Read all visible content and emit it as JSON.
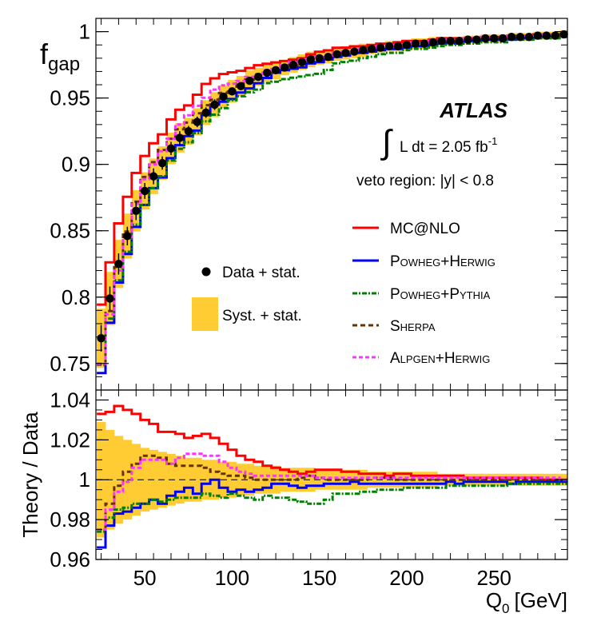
{
  "chart_data": [
    {
      "type": "line",
      "panel": "top",
      "ylabel": "f",
      "ylabel_sub": "gap",
      "ylim": [
        0.73,
        1.01
      ],
      "xlim": [
        22,
        292
      ],
      "yticks": [
        {
          "v": 0.75,
          "label": "0.75"
        },
        {
          "v": 0.8,
          "label": "0.8"
        },
        {
          "v": 0.85,
          "label": "0.85"
        },
        {
          "v": 0.9,
          "label": "0.9"
        },
        {
          "v": 0.95,
          "label": "0.95"
        },
        {
          "v": 1.0,
          "label": "1"
        }
      ],
      "annotations": {
        "experiment": "ATLAS",
        "lumi_prefix": "L dt = 2.05 fb",
        "lumi_exp": "-1",
        "integral": "∫",
        "veto": "veto region: |y| < 0.8"
      },
      "legend": {
        "data": "Data + stat.",
        "syst": "Syst. + stat.",
        "mcnlo": "MC@NLO",
        "powheg_herwig": "Powheg+Herwig",
        "powheg_pythia": "Powheg+Pythia",
        "sherpa": "Sherpa",
        "alpgen": "Alpgen+Herwig"
      },
      "data": {
        "x": [
          25,
          30,
          35,
          40,
          45,
          50,
          55,
          60,
          65,
          70,
          75,
          80,
          85,
          90,
          95,
          100,
          105,
          110,
          115,
          120,
          125,
          130,
          135,
          140,
          145,
          150,
          155,
          160,
          165,
          170,
          175,
          180,
          185,
          190,
          195,
          200,
          205,
          210,
          215,
          220,
          225,
          230,
          235,
          240,
          245,
          250,
          255,
          260,
          265,
          270,
          275,
          280,
          285,
          290
        ],
        "y": [
          0.769,
          0.799,
          0.825,
          0.846,
          0.865,
          0.88,
          0.891,
          0.901,
          0.912,
          0.92,
          0.925,
          0.932,
          0.939,
          0.945,
          0.951,
          0.955,
          0.959,
          0.963,
          0.966,
          0.969,
          0.971,
          0.973,
          0.975,
          0.977,
          0.979,
          0.98,
          0.981,
          0.983,
          0.984,
          0.985,
          0.986,
          0.987,
          0.988,
          0.989,
          0.989,
          0.99,
          0.991,
          0.991,
          0.992,
          0.993,
          0.993,
          0.993,
          0.994,
          0.994,
          0.995,
          0.995,
          0.995,
          0.996,
          0.996,
          0.996,
          0.997,
          0.997,
          0.997,
          0.998
        ],
        "stat_err": [
          0.01,
          0.009,
          0.008,
          0.007,
          0.007,
          0.006,
          0.006,
          0.005,
          0.005,
          0.005,
          0.004,
          0.004,
          0.004,
          0.004,
          0.003,
          0.003,
          0.003,
          0.003,
          0.003,
          0.002,
          0.002,
          0.002,
          0.002,
          0.002,
          0.002,
          0.002,
          0.002,
          0.002,
          0.002,
          0.002,
          0.001,
          0.001,
          0.001,
          0.001,
          0.001,
          0.001,
          0.001,
          0.001,
          0.001,
          0.001,
          0.001,
          0.001,
          0.001,
          0.001,
          0.001,
          0.001,
          0.001,
          0.001,
          0.001,
          0.001,
          0.001,
          0.001,
          0.001,
          0.001
        ]
      }
    },
    {
      "type": "line",
      "panel": "bottom",
      "ylabel": "Theory / Data",
      "xlabel": "Q",
      "xlabel_sub": "0",
      "xlabel_unit": "[GeV]",
      "ylim": [
        0.96,
        1.045
      ],
      "xlim": [
        22,
        292
      ],
      "yticks": [
        {
          "v": 0.96,
          "label": "0.96"
        },
        {
          "v": 0.98,
          "label": "0.98"
        },
        {
          "v": 1.0,
          "label": "1"
        },
        {
          "v": 1.02,
          "label": "1.02"
        },
        {
          "v": 1.04,
          "label": "1.04"
        }
      ],
      "xticks": [
        {
          "v": 50,
          "label": "50"
        },
        {
          "v": 100,
          "label": "100"
        },
        {
          "v": 150,
          "label": "150"
        },
        {
          "v": 200,
          "label": "200"
        },
        {
          "v": 250,
          "label": "250"
        }
      ],
      "bin_edges": [
        22.5,
        27.5,
        32.5,
        37.5,
        42.5,
        47.5,
        52.5,
        57.5,
        62.5,
        67.5,
        72.5,
        77.5,
        82.5,
        87.5,
        92.5,
        97.5,
        102.5,
        107.5,
        112.5,
        117.5,
        122.5,
        127.5,
        132.5,
        137.5,
        142.5,
        147.5,
        152.5,
        157.5,
        162.5,
        167.5,
        172.5,
        177.5,
        182.5,
        187.5,
        192.5,
        197.5,
        202.5,
        207.5,
        212.5,
        217.5,
        222.5,
        227.5,
        232.5,
        237.5,
        242.5,
        247.5,
        252.5,
        257.5,
        262.5,
        267.5,
        272.5,
        277.5,
        282.5,
        287.5,
        292.5
      ],
      "band": [
        0.029,
        0.025,
        0.022,
        0.02,
        0.018,
        0.016,
        0.015,
        0.014,
        0.013,
        0.012,
        0.011,
        0.011,
        0.01,
        0.01,
        0.009,
        0.009,
        0.008,
        0.008,
        0.007,
        0.007,
        0.007,
        0.006,
        0.006,
        0.006,
        0.006,
        0.005,
        0.005,
        0.005,
        0.005,
        0.005,
        0.005,
        0.004,
        0.004,
        0.004,
        0.004,
        0.004,
        0.004,
        0.004,
        0.004,
        0.003,
        0.003,
        0.003,
        0.003,
        0.003,
        0.003,
        0.003,
        0.003,
        0.003,
        0.003,
        0.003,
        0.003,
        0.003,
        0.003,
        0.003
      ],
      "series": [
        {
          "key": "mcnlo",
          "name": "MC@NLO",
          "color": "#ff0000",
          "dash": "",
          "values": [
            1.033,
            1.034,
            1.037,
            1.035,
            1.033,
            1.03,
            1.028,
            1.024,
            1.024,
            1.023,
            1.021,
            1.022,
            1.023,
            1.021,
            1.018,
            1.015,
            1.012,
            1.01,
            1.009,
            1.007,
            1.006,
            1.005,
            1.004,
            1.003,
            1.004,
            1.005,
            1.005,
            1.005,
            1.004,
            1.004,
            1.003,
            1.003,
            1.003,
            1.002,
            1.003,
            1.003,
            1.002,
            1.002,
            1.002,
            1.002,
            1.002,
            1.002,
            1.001,
            1.001,
            1.001,
            1.001,
            1.001,
            1.001,
            1.001,
            1.001,
            1.001,
            1.0,
            1.0,
            1.0
          ]
        },
        {
          "key": "powheg_herwig",
          "name": "Powheg+Herwig",
          "color": "#0000ff",
          "dash": "",
          "values": [
            0.966,
            0.977,
            0.983,
            0.984,
            0.986,
            0.988,
            0.99,
            0.988,
            0.992,
            0.994,
            0.996,
            0.993,
            0.998,
            1.0,
            0.996,
            0.994,
            0.995,
            0.994,
            0.995,
            0.996,
            0.998,
            0.998,
            0.997,
            0.996,
            0.997,
            0.997,
            0.998,
            0.998,
            0.998,
            0.999,
            0.998,
            0.998,
            0.998,
            0.998,
            0.998,
            0.998,
            0.998,
            0.998,
            0.998,
            0.998,
            0.999,
            0.998,
            0.999,
            0.999,
            0.999,
            0.999,
            0.999,
            0.998,
            0.999,
            0.999,
            0.999,
            0.999,
            0.999,
            0.999
          ]
        },
        {
          "key": "powheg_pythia",
          "name": "Powheg+Pythia",
          "color": "#008000",
          "dash": "6,2,2,2",
          "values": [
            0.974,
            0.981,
            0.985,
            0.986,
            0.988,
            0.988,
            0.99,
            0.989,
            0.99,
            0.991,
            0.991,
            0.991,
            0.993,
            0.992,
            0.991,
            0.993,
            0.992,
            0.991,
            0.99,
            0.992,
            0.991,
            0.991,
            0.99,
            0.989,
            0.988,
            0.988,
            0.99,
            0.993,
            0.993,
            0.993,
            0.994,
            0.994,
            0.995,
            0.995,
            0.995,
            0.996,
            0.996,
            0.996,
            0.996,
            0.996,
            0.997,
            0.997,
            0.997,
            0.997,
            0.997,
            0.997,
            0.997,
            0.998,
            0.998,
            0.998,
            0.998,
            0.998,
            0.998,
            0.998
          ]
        },
        {
          "key": "sherpa",
          "name": "Sherpa",
          "color": "#663300",
          "dash": "6,4",
          "values": [
            0.975,
            0.988,
            0.997,
            1.004,
            1.008,
            1.012,
            1.012,
            1.011,
            1.008,
            1.007,
            1.007,
            1.007,
            1.006,
            1.004,
            1.003,
            1.002,
            1.002,
            1.001,
            1.0,
            1.0,
            1.0,
            1.0,
            1.0,
            1.001,
            1.002,
            1.001,
            1.0,
            1.0,
            1.0,
            1.0,
            1.0,
            1.001,
            1.001,
            1.001,
            1.0,
            1.0,
            1.0,
            1.0,
            1.0,
            1.0,
            1.0,
            1.0,
            1.0,
            1.0,
            1.0,
            1.0,
            1.0,
            1.0,
            1.0,
            1.0,
            1.0,
            1.0,
            1.0,
            1.0
          ]
        },
        {
          "key": "alpgen",
          "name": "Alpgen+Herwig",
          "color": "#ff33ff",
          "dash": "5,3",
          "values": [
            0.975,
            0.985,
            0.994,
            0.999,
            1.006,
            1.01,
            1.01,
            1.01,
            1.008,
            1.011,
            1.013,
            1.013,
            1.012,
            1.012,
            1.009,
            1.006,
            1.004,
            1.003,
            1.002,
            1.002,
            1.002,
            1.002,
            1.002,
            1.002,
            1.002,
            1.001,
            1.001,
            1.001,
            1.001,
            1.001,
            1.001,
            1.001,
            1.001,
            1.001,
            1.001,
            1.001,
            1.001,
            1.001,
            1.001,
            1.001,
            1.001,
            1.001,
            1.001,
            1.001,
            1.001,
            1.001,
            1.001,
            1.001,
            1.001,
            1.001,
            1.001,
            1.001,
            1.001,
            1.0
          ]
        }
      ]
    }
  ],
  "colors": {
    "band": "#ffcc33",
    "data": "#000000"
  }
}
